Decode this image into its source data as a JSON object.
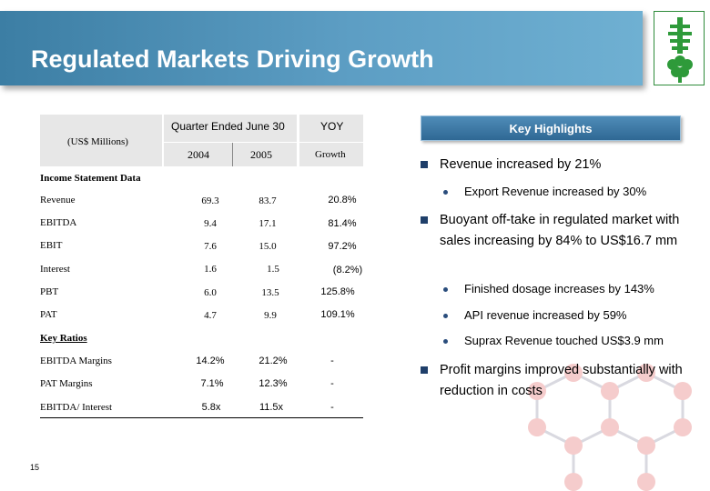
{
  "slide": {
    "title": "Regulated Markets Driving Growth",
    "page_number": "15"
  },
  "table": {
    "currency_label": "(US$ Millions)",
    "period_header": "Quarter Ended June 30",
    "yoy_header": "YOY",
    "year1": "2004",
    "year2": "2005",
    "growth_header": "Growth",
    "income_section": "Income Statement Data",
    "income_rows": [
      {
        "label": "Revenue",
        "v2004": "69.3",
        "v2005": "83.7",
        "growth": "20.8%"
      },
      {
        "label": "EBITDA",
        "v2004": "9.4",
        "v2005": "17.1",
        "growth": "81.4%"
      },
      {
        "label": "EBIT",
        "v2004": "7.6",
        "v2005": "15.0",
        "growth": "97.2%"
      },
      {
        "label": "Interest",
        "v2004": "1.6",
        "v2005": "1.5",
        "growth": "(8.2%)"
      },
      {
        "label": "PBT",
        "v2004": "6.0",
        "v2005": "13.5",
        "growth": "125.8%"
      },
      {
        "label": "PAT",
        "v2004": "4.7",
        "v2005": "9.9",
        "growth": "109.1%"
      }
    ],
    "ratio_section": "Key Ratios",
    "ratio_rows": [
      {
        "label": "EBITDA Margins",
        "v2004": "14.2%",
        "v2005": "21.2%",
        "growth": "-"
      },
      {
        "label": "PAT Margins",
        "v2004": "7.1%",
        "v2005": "12.3%",
        "growth": "-"
      },
      {
        "label": "EBITDA/ Interest",
        "v2004": "5.8x",
        "v2005": "11.5x",
        "growth": "-"
      }
    ]
  },
  "highlights": {
    "heading": "Key Highlights",
    "items": [
      {
        "text": "Revenue increased by 21%"
      },
      {
        "text": "Export Revenue increased by 30%"
      },
      {
        "text": "Buoyant off-take in regulated market with sales increasing by 84% to US$16.7 mm"
      },
      {
        "text": "Finished dosage increases by 143%"
      },
      {
        "text": "API revenue increased by 59%"
      },
      {
        "text": "Suprax Revenue touched US$3.9 mm"
      },
      {
        "text": "Profit margins improved substantially with reduction in costs"
      }
    ]
  },
  "colors": {
    "title_bar": "#4a8db5",
    "logo_green": "#2e9a3a",
    "bullet": "#1f3f6a",
    "molecule": "#f3c9c9"
  }
}
